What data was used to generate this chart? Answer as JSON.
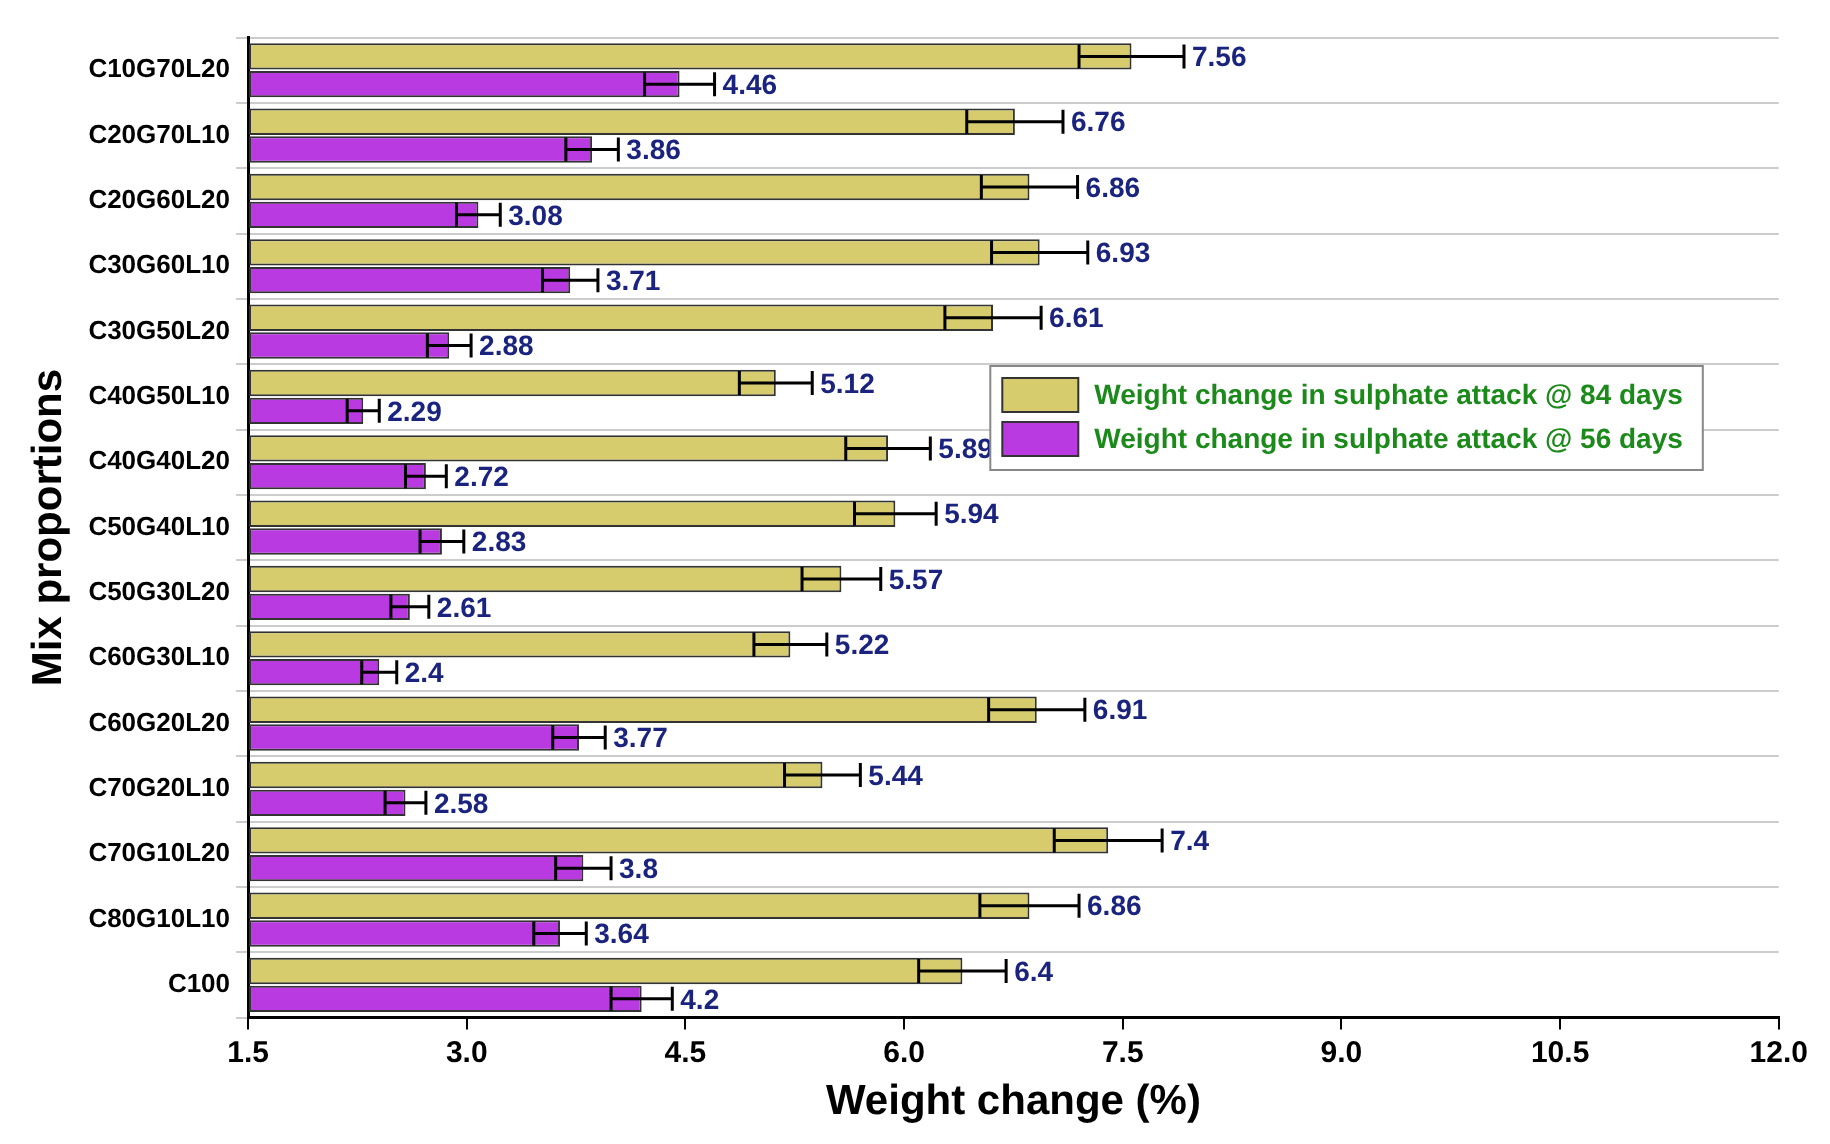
{
  "chart_data": {
    "type": "bar",
    "orientation": "horizontal",
    "xlabel": "Weight change (%)",
    "ylabel": "Mix proportions",
    "categories": [
      "C10G70L20",
      "C20G70L10",
      "C20G60L20",
      "C30G60L10",
      "C30G50L20",
      "C40G50L10",
      "C40G40L20",
      "C50G40L10",
      "C50G30L20",
      "C60G30L10",
      "C60G20L20",
      "C70G20L10",
      "C70G10L20",
      "C80G10L10",
      "C100"
    ],
    "series": [
      {
        "name": "Weight change in sulphate attack @ 84 days",
        "color": "#d6cc6e",
        "values": [
          7.56,
          6.76,
          6.86,
          6.93,
          6.61,
          5.12,
          5.89,
          5.94,
          5.57,
          5.22,
          6.91,
          5.44,
          7.4,
          6.86,
          6.4
        ],
        "errors": [
          0.36,
          0.33,
          0.33,
          0.33,
          0.33,
          0.25,
          0.29,
          0.28,
          0.27,
          0.25,
          0.33,
          0.26,
          0.37,
          0.34,
          0.3
        ]
      },
      {
        "name": "Weight change in sulphate attack @ 56 days",
        "color": "#b83ae0",
        "values": [
          4.46,
          3.86,
          3.08,
          3.71,
          2.88,
          2.29,
          2.72,
          2.83,
          2.61,
          2.4,
          3.77,
          2.58,
          3.8,
          3.64,
          4.2
        ],
        "errors": [
          0.24,
          0.18,
          0.15,
          0.19,
          0.15,
          0.11,
          0.14,
          0.15,
          0.13,
          0.12,
          0.18,
          0.14,
          0.19,
          0.18,
          0.21
        ]
      }
    ],
    "xlim": [
      1.5,
      12.0
    ],
    "xticks": [
      {
        "value": 1.5,
        "label": "1.5"
      },
      {
        "value": 3,
        "label": "3.0"
      },
      {
        "value": 4.5,
        "label": "4.5"
      },
      {
        "value": 6,
        "label": "6.0"
      },
      {
        "value": 7.5,
        "label": "7.5"
      },
      {
        "value": 9,
        "label": "9.0"
      },
      {
        "value": 10.5,
        "label": "10.5"
      },
      {
        "value": 12,
        "label": "12.0"
      }
    ],
    "grid": "y",
    "legend": "right",
    "data_labels": true
  }
}
